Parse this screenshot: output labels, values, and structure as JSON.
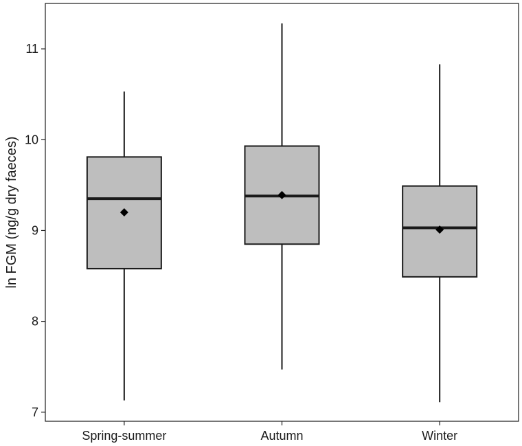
{
  "chart_data": {
    "type": "box",
    "ylabel": "ln FGM (ng/g dry faeces)",
    "xlabel": "",
    "ylim": [
      6.9,
      11.5
    ],
    "yticks": [
      7,
      8,
      9,
      10,
      11
    ],
    "categories": [
      "Spring-summer",
      "Autumn",
      "Winter"
    ],
    "boxes": [
      {
        "category": "Spring-summer",
        "min": 7.13,
        "q1": 8.58,
        "median": 9.35,
        "q3": 9.81,
        "max": 10.53,
        "mean": 9.2
      },
      {
        "category": "Autumn",
        "min": 7.47,
        "q1": 8.85,
        "median": 9.38,
        "q3": 9.93,
        "max": 11.28,
        "mean": 9.39
      },
      {
        "category": "Winter",
        "min": 7.11,
        "q1": 8.49,
        "median": 9.03,
        "q3": 9.49,
        "max": 10.83,
        "mean": 9.01
      }
    ],
    "colors": {
      "box_fill": "#bebebe",
      "stroke": "#1a1a1a",
      "mean_marker": "#000000"
    },
    "grid": false
  }
}
